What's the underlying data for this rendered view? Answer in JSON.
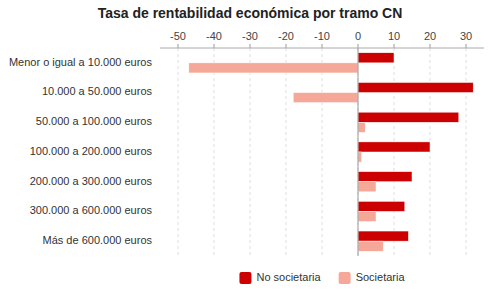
{
  "chart_data": {
    "type": "bar",
    "orientation": "horizontal",
    "title": "Tasa de rentabilidad económica por tramo CN",
    "categories": [
      "Menor o igual a 10.000 euros",
      "10.000 a 50.000 euros",
      "50.000 a 100.000 euros",
      "100.000 a 200.000 euros",
      "200.000 a 300.000 euros",
      "300.000 a 600.000 euros",
      "Más de 600.000 euros"
    ],
    "series": [
      {
        "name": "No societaria",
        "color": "#cc0000",
        "values": [
          10,
          32,
          28,
          20,
          15,
          13,
          14
        ]
      },
      {
        "name": "Societaria",
        "color": "#f5a898",
        "values": [
          -47,
          -18,
          2,
          1,
          5,
          5,
          7
        ]
      }
    ],
    "xlim": [
      -55,
      35
    ],
    "xticks": [
      -50,
      -40,
      -30,
      -20,
      -10,
      0,
      10,
      20,
      30
    ],
    "grid": true,
    "legend": "bottom"
  }
}
